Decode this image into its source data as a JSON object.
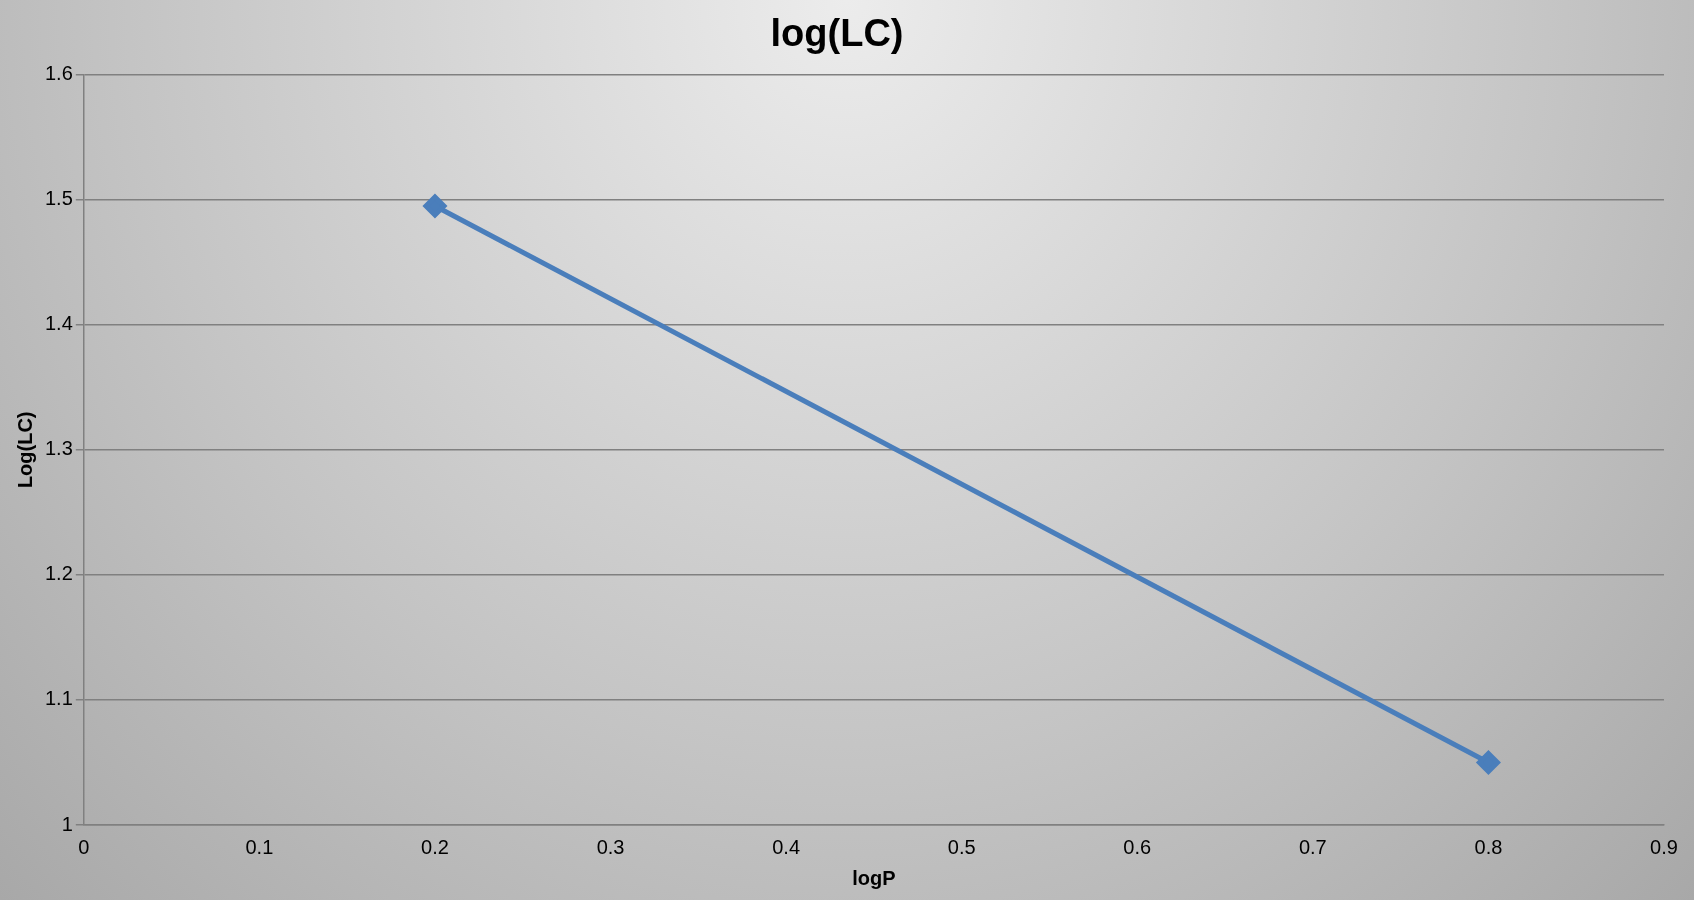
{
  "chart_data": {
    "type": "line",
    "title": "log(LC)",
    "xlabel": "logP",
    "ylabel": "Log(LC)",
    "series": [
      {
        "color": "#4a7ebb",
        "x": [
          0.2,
          0.8
        ],
        "values": [
          1.495,
          1.05
        ]
      }
    ],
    "xlim": [
      0,
      0.9
    ],
    "xticks": [
      0,
      0.1,
      0.2,
      0.3,
      0.4,
      0.5,
      0.6,
      0.7,
      0.8,
      0.9
    ],
    "ylim": [
      1,
      1.6
    ],
    "yticks": [
      1,
      1.1,
      1.2,
      1.3,
      1.4,
      1.5,
      1.6
    ],
    "grid": "y",
    "legend": false,
    "marker": "diamond",
    "line_style": "solid"
  }
}
